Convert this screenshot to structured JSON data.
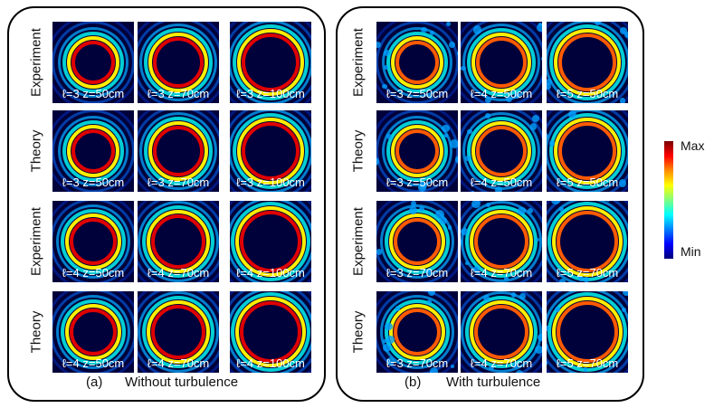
{
  "panel_a": {
    "label": "(a)",
    "caption": "Without turbulence",
    "row_labels": [
      "Experiment",
      "Theory",
      "Experiment",
      "Theory"
    ],
    "tiles": [
      [
        "ℓ=3 z=50cm",
        "ℓ=3 z=70cm",
        "ℓ=3 z=100cm"
      ],
      [
        "ℓ=3 z=50cm",
        "ℓ=3 z=70cm",
        "ℓ=3 z=100cm"
      ],
      [
        "ℓ=4 z=50cm",
        "ℓ=4 z=70cm",
        "ℓ=4 z=100cm"
      ],
      [
        "ℓ=4 z=50cm",
        "ℓ=4 z=70cm",
        "ℓ=4 z=100cm"
      ]
    ]
  },
  "panel_b": {
    "label": "(b)",
    "caption": "With turbulence",
    "row_labels": [
      "Experiment",
      "Theory",
      "Experiment",
      "Theory"
    ],
    "tiles": [
      [
        "ℓ=3 z=50cm",
        "ℓ=4 z=50cm",
        "ℓ=5 z=50cm"
      ],
      [
        "ℓ=3 z=50cm",
        "ℓ=4 z=50cm",
        "ℓ=5 z=50cm"
      ],
      [
        "ℓ=3 z=70cm",
        "ℓ=4 z=70cm",
        "ℓ=5 z=70cm"
      ],
      [
        "ℓ=3 z=70cm",
        "ℓ=4 z=70cm",
        "ℓ=5 z=70cm"
      ]
    ]
  },
  "colorbar": {
    "max_label": "Max",
    "min_label": "Min"
  }
}
